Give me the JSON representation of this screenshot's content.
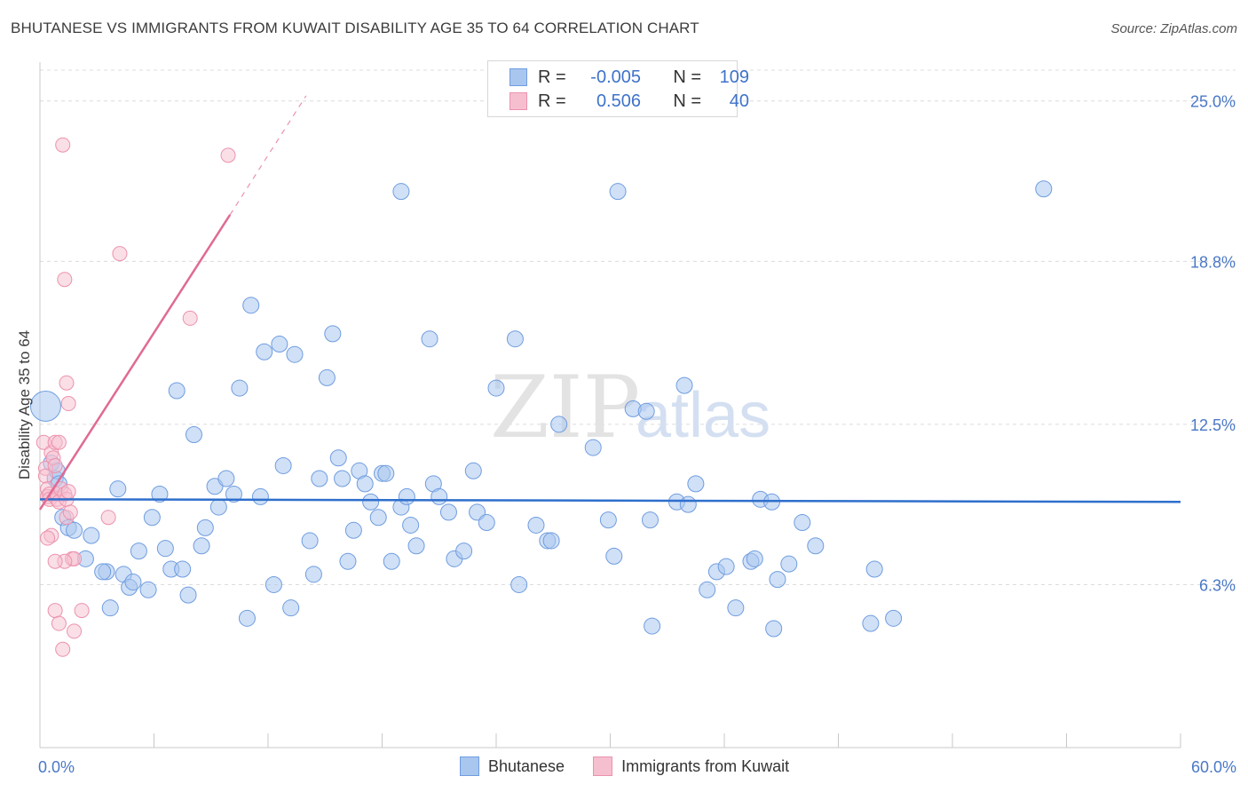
{
  "title": "BHUTANESE VS IMMIGRANTS FROM KUWAIT DISABILITY AGE 35 TO 64 CORRELATION CHART",
  "source": "Source: ZipAtlas.com",
  "watermark": {
    "zip": "ZIP",
    "atlas": "atlas"
  },
  "legend": {
    "rows": [
      {
        "r_label": "R =",
        "r_value": "-0.005",
        "n_label": "N =",
        "n_value": "109"
      },
      {
        "r_label": "R =",
        "r_value": "0.506",
        "n_label": "N =",
        "n_value": "40"
      }
    ]
  },
  "colors": {
    "blue_fill": "#a9c6ef",
    "blue_stroke": "#6f9de0",
    "blue_line": "#2e6fcc",
    "pink_fill": "#f6bfd0",
    "pink_stroke": "#ec92ad",
    "pink_line": "#e06a93"
  },
  "chart_data": {
    "type": "scatter",
    "title": "BHUTANESE VS IMMIGRANTS FROM KUWAIT DISABILITY AGE 35 TO 64 CORRELATION CHART",
    "xlabel": "",
    "ylabel": "Disability Age 35 to 64",
    "xlim": [
      0,
      60
    ],
    "ylim": [
      0,
      26.5
    ],
    "x_tick_labels": [
      "0.0%",
      "60.0%"
    ],
    "y_ticks": [
      6.3,
      12.5,
      18.8,
      25.0
    ],
    "y_tick_labels": [
      "6.3%",
      "12.5%",
      "18.8%",
      "25.0%"
    ],
    "series": [
      {
        "name": "Bhutanese",
        "r": -0.005,
        "n": 109,
        "trend": {
          "x": [
            0,
            60
          ],
          "y": [
            9.6,
            9.5
          ]
        },
        "points": [
          [
            0.3,
            13.2
          ],
          [
            0.6,
            11.0
          ],
          [
            0.8,
            10.4
          ],
          [
            0.9,
            10.7
          ],
          [
            1.0,
            10.2
          ],
          [
            1.2,
            8.9
          ],
          [
            1.5,
            8.5
          ],
          [
            1.8,
            8.4
          ],
          [
            2.4,
            7.3
          ],
          [
            2.7,
            8.2
          ],
          [
            3.5,
            6.8
          ],
          [
            3.3,
            6.8
          ],
          [
            3.7,
            5.4
          ],
          [
            4.1,
            10.0
          ],
          [
            4.4,
            6.7
          ],
          [
            4.7,
            6.2
          ],
          [
            4.9,
            6.4
          ],
          [
            5.2,
            7.6
          ],
          [
            5.7,
            6.1
          ],
          [
            5.9,
            8.9
          ],
          [
            6.3,
            9.8
          ],
          [
            6.6,
            7.7
          ],
          [
            6.9,
            6.9
          ],
          [
            7.2,
            13.8
          ],
          [
            7.5,
            6.9
          ],
          [
            7.8,
            5.9
          ],
          [
            8.1,
            12.1
          ],
          [
            8.5,
            7.8
          ],
          [
            8.7,
            8.5
          ],
          [
            9.2,
            10.1
          ],
          [
            9.4,
            9.3
          ],
          [
            9.8,
            10.4
          ],
          [
            10.2,
            9.8
          ],
          [
            10.5,
            13.9
          ],
          [
            10.9,
            5.0
          ],
          [
            11.1,
            17.1
          ],
          [
            11.6,
            9.7
          ],
          [
            11.8,
            15.3
          ],
          [
            12.3,
            6.3
          ],
          [
            12.6,
            15.6
          ],
          [
            12.8,
            10.9
          ],
          [
            13.2,
            5.4
          ],
          [
            13.4,
            15.2
          ],
          [
            14.2,
            8.0
          ],
          [
            14.4,
            6.7
          ],
          [
            14.7,
            10.4
          ],
          [
            15.1,
            14.3
          ],
          [
            15.4,
            16.0
          ],
          [
            15.7,
            11.2
          ],
          [
            15.9,
            10.4
          ],
          [
            16.2,
            7.2
          ],
          [
            16.5,
            8.4
          ],
          [
            16.8,
            10.7
          ],
          [
            17.1,
            10.2
          ],
          [
            17.4,
            9.5
          ],
          [
            17.8,
            8.9
          ],
          [
            18.0,
            10.6
          ],
          [
            18.2,
            10.6
          ],
          [
            18.5,
            7.2
          ],
          [
            19.0,
            9.3
          ],
          [
            19.3,
            9.7
          ],
          [
            19.5,
            8.6
          ],
          [
            19.8,
            7.8
          ],
          [
            19.0,
            21.5
          ],
          [
            20.5,
            15.8
          ],
          [
            20.7,
            10.2
          ],
          [
            21.0,
            9.7
          ],
          [
            21.5,
            9.1
          ],
          [
            21.8,
            7.3
          ],
          [
            22.3,
            7.6
          ],
          [
            22.8,
            10.7
          ],
          [
            23.0,
            9.1
          ],
          [
            23.5,
            8.7
          ],
          [
            24.0,
            13.9
          ],
          [
            25.2,
            6.3
          ],
          [
            25.0,
            15.8
          ],
          [
            26.1,
            8.6
          ],
          [
            26.7,
            8.0
          ],
          [
            26.9,
            8.0
          ],
          [
            27.3,
            12.5
          ],
          [
            29.1,
            11.6
          ],
          [
            29.9,
            8.8
          ],
          [
            30.2,
            7.4
          ],
          [
            30.4,
            21.5
          ],
          [
            31.2,
            13.1
          ],
          [
            31.9,
            13.0
          ],
          [
            32.1,
            8.8
          ],
          [
            32.2,
            4.7
          ],
          [
            33.5,
            9.5
          ],
          [
            33.9,
            14.0
          ],
          [
            34.1,
            9.4
          ],
          [
            34.5,
            10.2
          ],
          [
            35.1,
            6.1
          ],
          [
            35.6,
            6.8
          ],
          [
            36.1,
            7.0
          ],
          [
            36.6,
            5.4
          ],
          [
            37.4,
            7.2
          ],
          [
            37.6,
            7.3
          ],
          [
            37.9,
            9.6
          ],
          [
            38.5,
            9.5
          ],
          [
            38.6,
            4.6
          ],
          [
            38.8,
            6.5
          ],
          [
            39.4,
            7.1
          ],
          [
            40.1,
            8.7
          ],
          [
            40.8,
            7.8
          ],
          [
            43.7,
            4.8
          ],
          [
            43.9,
            6.9
          ],
          [
            44.9,
            5.0
          ],
          [
            52.8,
            21.6
          ]
        ]
      },
      {
        "name": "Immigrants from Kuwait",
        "r": 0.506,
        "n": 40,
        "trend": {
          "x": [
            0,
            10
          ],
          "y": [
            9.2,
            20.6
          ]
        },
        "trend_dashed": {
          "x": [
            10,
            14
          ],
          "y": [
            20.6,
            25.2
          ]
        },
        "points": [
          [
            0.2,
            11.8
          ],
          [
            0.3,
            10.8
          ],
          [
            0.3,
            10.5
          ],
          [
            0.4,
            10.0
          ],
          [
            0.4,
            9.7
          ],
          [
            0.5,
            9.8
          ],
          [
            0.5,
            9.6
          ],
          [
            0.6,
            11.4
          ],
          [
            0.7,
            11.2
          ],
          [
            0.8,
            11.8
          ],
          [
            0.8,
            10.9
          ],
          [
            0.9,
            9.6
          ],
          [
            0.9,
            9.8
          ],
          [
            1.0,
            9.5
          ],
          [
            1.0,
            11.8
          ],
          [
            1.1,
            10.0
          ],
          [
            1.3,
            9.8
          ],
          [
            1.4,
            9.6
          ],
          [
            1.5,
            9.9
          ],
          [
            1.5,
            13.3
          ],
          [
            1.4,
            14.1
          ],
          [
            1.3,
            18.1
          ],
          [
            1.2,
            23.3
          ],
          [
            1.4,
            8.9
          ],
          [
            1.6,
            9.1
          ],
          [
            1.7,
            7.3
          ],
          [
            1.8,
            7.3
          ],
          [
            1.3,
            7.2
          ],
          [
            0.8,
            7.2
          ],
          [
            0.6,
            8.2
          ],
          [
            0.4,
            8.1
          ],
          [
            0.8,
            5.3
          ],
          [
            1.0,
            4.8
          ],
          [
            1.2,
            3.8
          ],
          [
            1.8,
            4.5
          ],
          [
            2.2,
            5.3
          ],
          [
            3.6,
            8.9
          ],
          [
            4.2,
            19.1
          ],
          [
            7.9,
            16.6
          ],
          [
            9.9,
            22.9
          ]
        ]
      }
    ]
  }
}
